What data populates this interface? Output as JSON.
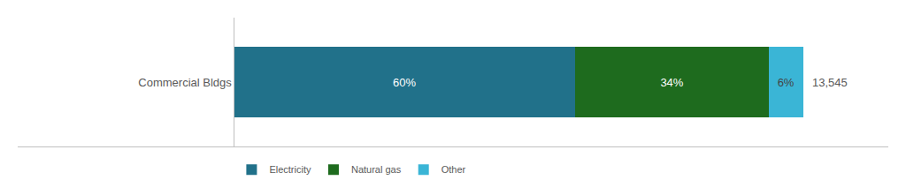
{
  "chart_data": {
    "type": "bar",
    "orientation": "horizontal",
    "stacked": true,
    "categories": [
      "Commercial Bldgs"
    ],
    "series": [
      {
        "name": "Electricity",
        "color": "#21718a",
        "values": [
          60
        ],
        "value_labels": [
          "60%"
        ]
      },
      {
        "name": "Natural gas",
        "color": "#1e6b1e",
        "values": [
          34
        ],
        "value_labels": [
          "34%"
        ]
      },
      {
        "name": "Other",
        "color": "#3ab5d6",
        "values": [
          6
        ],
        "value_labels": [
          "6%"
        ]
      }
    ],
    "data_labels": true,
    "annotations": [
      "13,545"
    ],
    "xlim": [
      -38,
      115
    ],
    "xticks": [],
    "tick_labels": "y",
    "grid": false,
    "legend": "lower left"
  }
}
